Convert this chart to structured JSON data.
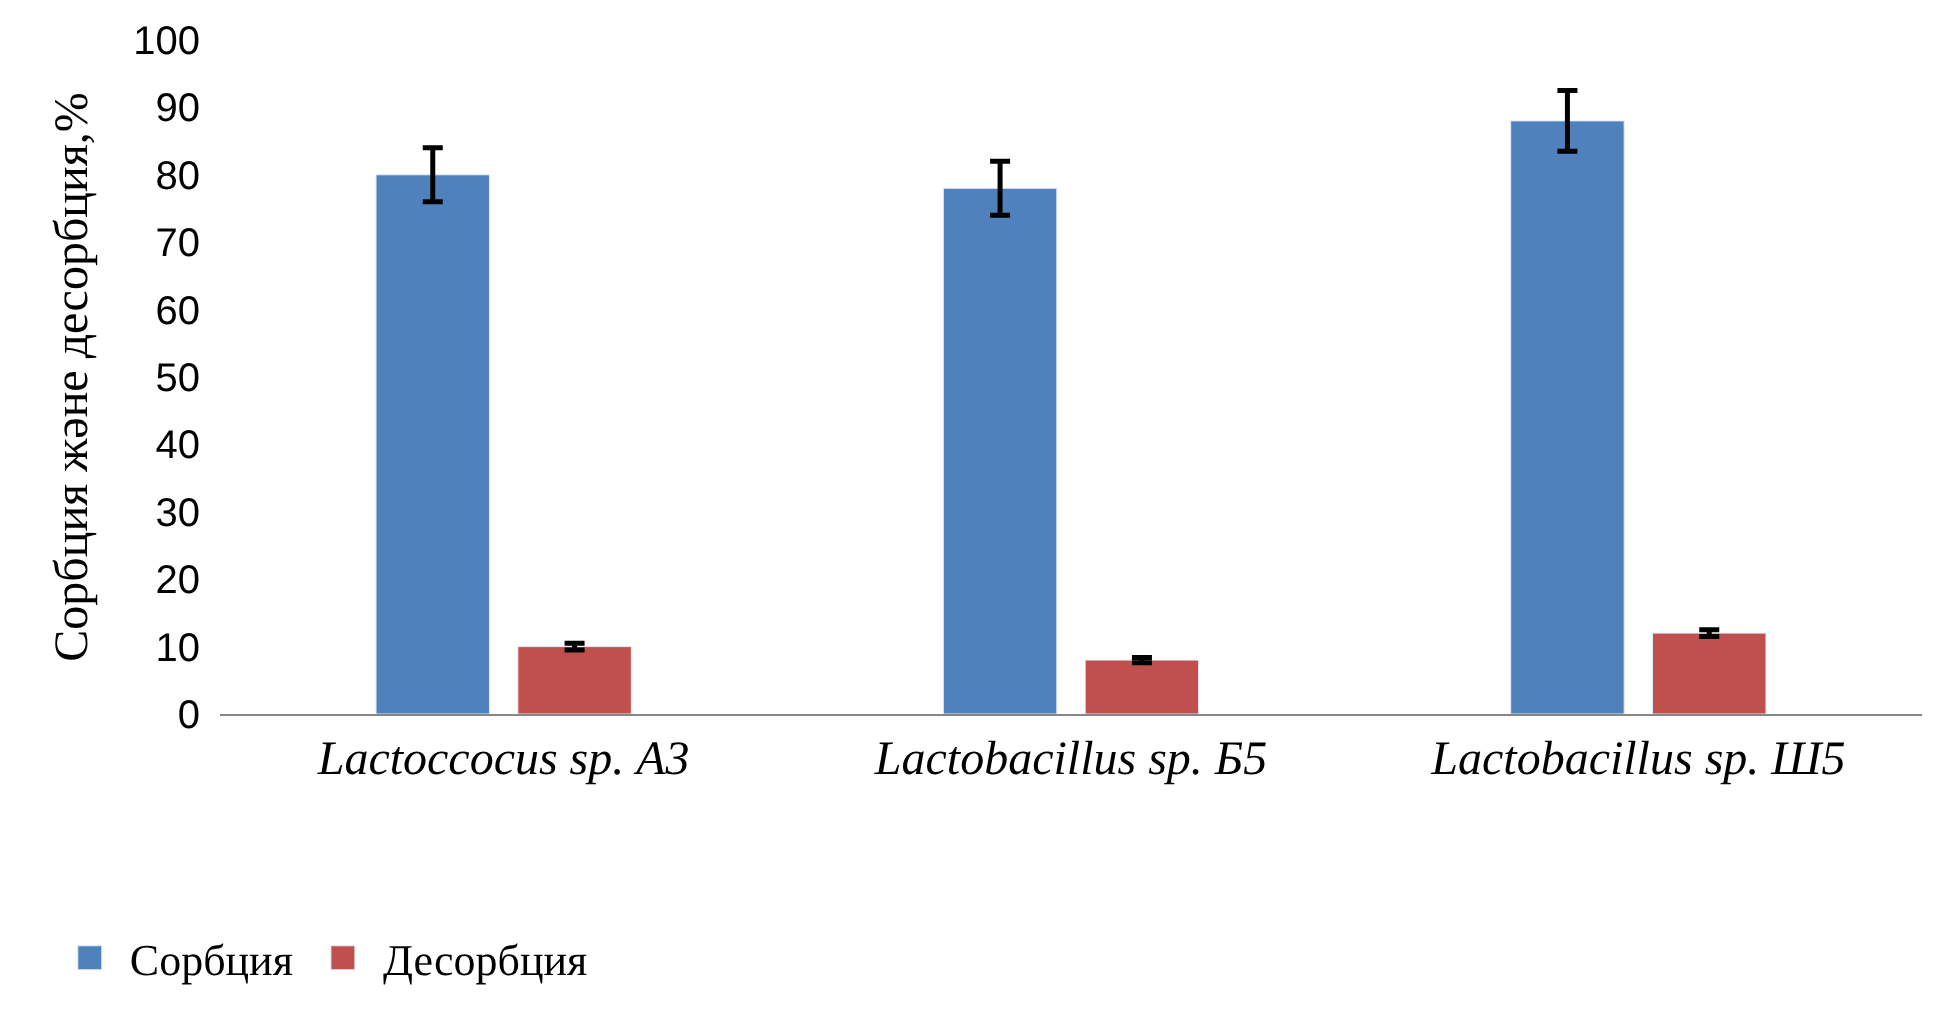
{
  "chart_data": {
    "type": "bar",
    "ylabel": "Сорбция және десорбция,%",
    "categories": [
      "Lactoccocus sp. А3",
      "Lactobacillus sp. Б5",
      "Lactobacillus sp. Ш5"
    ],
    "series": [
      {
        "name": "Сорбция",
        "color": "#4f81bd",
        "values": [
          80,
          78,
          88
        ],
        "errors": [
          4,
          4,
          4.5
        ]
      },
      {
        "name": "Десорбция",
        "color": "#c0504d",
        "values": [
          10,
          8,
          12
        ],
        "errors": [
          0.5,
          0.4,
          0.5
        ]
      }
    ],
    "ylim": [
      0,
      100
    ],
    "yticks": [
      0,
      10,
      20,
      30,
      40,
      50,
      60,
      70,
      80,
      90,
      100
    ],
    "legend": "bottom left"
  }
}
